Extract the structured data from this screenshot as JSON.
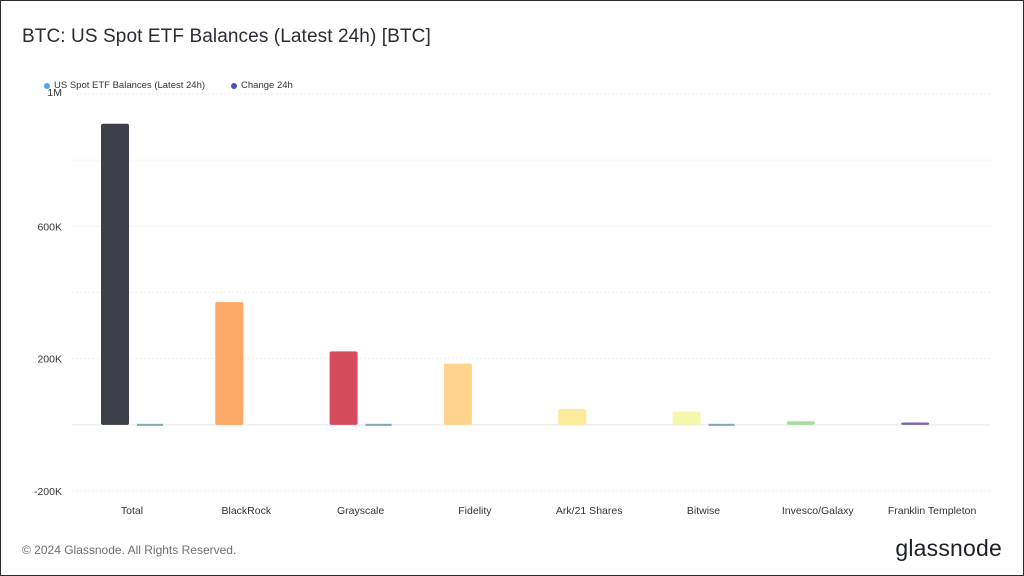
{
  "title": "BTC: US Spot ETF Balances (Latest 24h) [BTC]",
  "legend": [
    {
      "label": "US Spot ETF Balances (Latest 24h)",
      "color": "#4aa8f0"
    },
    {
      "label": "Change 24h",
      "color": "#4b4fbf"
    }
  ],
  "footer": "© 2024 Glassnode. All Rights Reserved.",
  "brand": "glassnode",
  "chart_data": {
    "type": "bar",
    "title": "BTC: US Spot ETF Balances (Latest 24h) [BTC]",
    "categories": [
      "Total",
      "BlackRock",
      "Grayscale",
      "Fidelity",
      "Ark/21 Shares",
      "Bitwise",
      "Invesco/Galaxy",
      "Franklin Templeton"
    ],
    "series": [
      {
        "name": "US Spot ETF Balances (Latest 24h)",
        "values": [
          910000,
          371000,
          222000,
          185000,
          48000,
          40000,
          11000,
          7000
        ],
        "colors": [
          "#3d4048",
          "#fba765",
          "#d74b5f",
          "#fed38c",
          "#fdeb9c",
          "#f5f7ad",
          "#a8dca0",
          "#7b64b0"
        ]
      },
      {
        "name": "Change 24h",
        "values": [
          3000,
          0,
          2000,
          0,
          0,
          2000,
          0,
          0
        ],
        "color": "#7fa8b5"
      }
    ],
    "yticks": [
      {
        "value": 1000000,
        "label": "1M"
      },
      {
        "value": 600000,
        "label": "600K"
      },
      {
        "value": 200000,
        "label": "200K"
      },
      {
        "value": -200000,
        "label": "-200K"
      }
    ],
    "ylim": [
      -200000,
      1000000
    ],
    "grid": true,
    "legend_position": "top-left"
  }
}
